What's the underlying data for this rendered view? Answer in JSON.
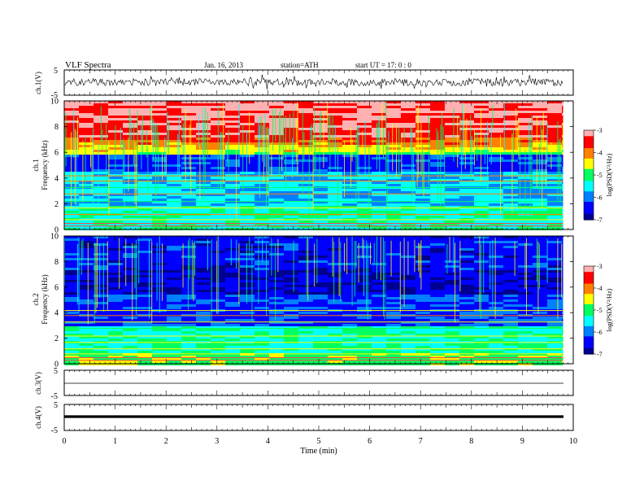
{
  "header": {
    "title": "VLF Spectra",
    "date": "Jan. 16, 2013",
    "station": "station=ATH",
    "start": "start  UT =    17: 0  : 0"
  },
  "chart_data": {
    "type": "heatmap",
    "x_axis": {
      "label": "Time  (min)",
      "range": [
        0,
        10
      ],
      "ticks": [
        "0",
        "1",
        "2",
        "3",
        "4",
        "5",
        "6",
        "7",
        "8",
        "9",
        "10"
      ],
      "data_end": 9.8
    },
    "panels": [
      {
        "id": "ch1-wave",
        "kind": "waveform",
        "ylabel": "ch.1(V)",
        "yticks": [
          "5",
          "-5"
        ],
        "yrange": [
          -5,
          5
        ],
        "amplitude": "noisy"
      },
      {
        "id": "ch1-spec",
        "kind": "spectrogram",
        "ylabel": "ch.1\nFrequency (kHz)",
        "yticks": [
          "0",
          "2",
          "4",
          "6",
          "8",
          "10"
        ],
        "yrange": [
          0,
          10
        ],
        "emission_top_khz": 6
      },
      {
        "id": "ch2-spec",
        "kind": "spectrogram",
        "ylabel": "ch.2\nFrequency (kHz)",
        "yticks": [
          "0",
          "2",
          "4",
          "6",
          "8",
          "10"
        ],
        "yrange": [
          0,
          10
        ],
        "emission_top_khz": 3
      },
      {
        "id": "ch3-wave",
        "kind": "waveform",
        "ylabel": "ch.3(V)",
        "yticks": [
          "5",
          "-5"
        ],
        "yrange": [
          -5,
          5
        ],
        "amplitude": "flat"
      },
      {
        "id": "ch4-wave",
        "kind": "waveform",
        "ylabel": "ch.4(V)",
        "yticks": [
          "5",
          "-5"
        ],
        "yrange": [
          -5,
          5
        ],
        "amplitude": "flat-thick"
      }
    ],
    "colorbar": {
      "label": "log(PSD(V²/Hz)",
      "ticks": [
        "-3",
        "-4",
        "-5",
        "-6",
        "-7"
      ],
      "range": [
        -7,
        -3
      ],
      "colors": [
        "#000090",
        "#0000ff",
        "#0080ff",
        "#00ffff",
        "#00ff60",
        "#ffff00",
        "#ff8000",
        "#ff0000",
        "#ffb0b0"
      ]
    }
  }
}
